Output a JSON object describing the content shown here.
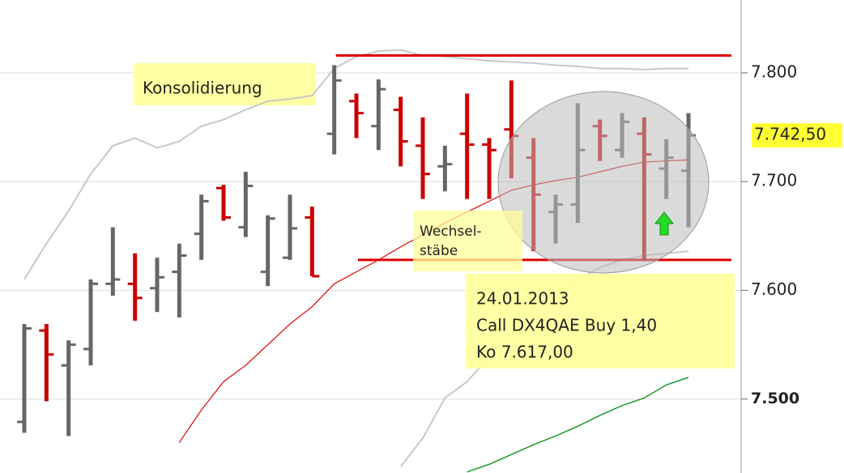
{
  "chart_data": {
    "type": "ohlc",
    "ylim": [
      7432,
      7867
    ],
    "yticks": [
      {
        "value": 7800,
        "label": "7.800"
      },
      {
        "value": 7700,
        "label": "7.700"
      },
      {
        "value": 7600,
        "label": "7.600"
      },
      {
        "value": 7500,
        "label": "7.500"
      }
    ],
    "grid": true,
    "up_color": "#666666",
    "down_color": "#cc0000",
    "open": [
      7479,
      7563,
      7531,
      7546,
      7606,
      7606,
      7602,
      7617,
      7652,
      7694,
      7658,
      7617,
      7630,
      7667,
      7744,
      7774,
      7751,
      7766,
      7733,
      7714,
      7744,
      7734,
      7748,
      7722,
      7672,
      7679,
      7751,
      7729,
      7744,
      7712,
      7710
    ],
    "high": [
      7569,
      7569,
      7554,
      7610,
      7658,
      7634,
      7630,
      7643,
      7688,
      7697,
      7709,
      7669,
      7688,
      7677,
      7807,
      7781,
      7794,
      7778,
      7759,
      7733,
      7781,
      7740,
      7793,
      7740,
      7688,
      7772,
      7757,
      7763,
      7759,
      7739,
      7763
    ],
    "low": [
      7469,
      7498,
      7466,
      7531,
      7595,
      7572,
      7580,
      7575,
      7628,
      7664,
      7649,
      7604,
      7628,
      7613,
      7725,
      7740,
      7729,
      7714,
      7684,
      7691,
      7684,
      7684,
      7703,
      7636,
      7643,
      7662,
      7719,
      7722,
      7627,
      7684,
      7658
    ],
    "close": [
      7565,
      7541,
      7550,
      7606,
      7610,
      7593,
      7612,
      7632,
      7682,
      7667,
      7696,
      7666,
      7657,
      7613,
      7793,
      7763,
      7785,
      7737,
      7707,
      7716,
      7734,
      7729,
      7742,
      7688,
      7679,
      7729,
      7742,
      7755,
      7725,
      7722,
      7742.5
    ],
    "last_value_label": "7.742,50",
    "lines": [
      {
        "color": "#c8c8c8",
        "values": [
          7610,
          7643,
          7673,
          7707,
          7733,
          7740,
          7731,
          7737,
          7751,
          7757,
          7766,
          7774,
          7776,
          7779,
          7804,
          7815,
          7820,
          7821,
          7816,
          7815,
          7813,
          7811,
          7810,
          7809,
          7807,
          7806,
          7804,
          7804,
          7803,
          7804,
          7804
        ]
      },
      {
        "color": "#c8c8c8",
        "values": [
          null,
          null,
          null,
          null,
          null,
          null,
          null,
          null,
          null,
          null,
          null,
          null,
          null,
          null,
          null,
          null,
          null,
          7438,
          7464,
          7501,
          7516,
          7539,
          7561,
          7584,
          7599,
          7610,
          7621,
          7628,
          7632,
          7634,
          7636
        ]
      },
      {
        "color": "#e00000",
        "values": [
          null,
          null,
          null,
          null,
          null,
          null,
          null,
          7460,
          7490,
          7516,
          7531,
          7550,
          7569,
          7585,
          7606,
          7617,
          7628,
          7640,
          7651,
          7662,
          7672,
          7682,
          7692,
          7697,
          7701,
          7704,
          7709,
          7714,
          7718,
          7719,
          7720
        ]
      },
      {
        "color": "#1a9a2a",
        "values": [
          null,
          null,
          null,
          null,
          null,
          null,
          null,
          null,
          null,
          null,
          null,
          null,
          null,
          null,
          null,
          null,
          null,
          null,
          null,
          null,
          7433,
          7440,
          7449,
          7458,
          7466,
          7475,
          7485,
          7494,
          7501,
          7513,
          7520
        ]
      }
    ],
    "levels": [
      {
        "value": 7816,
        "from": 14,
        "color": "#dd0000"
      },
      {
        "value": 7628,
        "from": 15,
        "color": "#dd0000"
      }
    ],
    "annotations": [
      {
        "lines": [
          "Konsolidierung"
        ]
      },
      {
        "lines": [
          "Wechsel-",
          "stäbe"
        ]
      },
      {
        "lines": [
          "24.01.2013",
          "Call DX4QAE Buy 1,40",
          "Ko 7.617,00"
        ]
      }
    ]
  }
}
